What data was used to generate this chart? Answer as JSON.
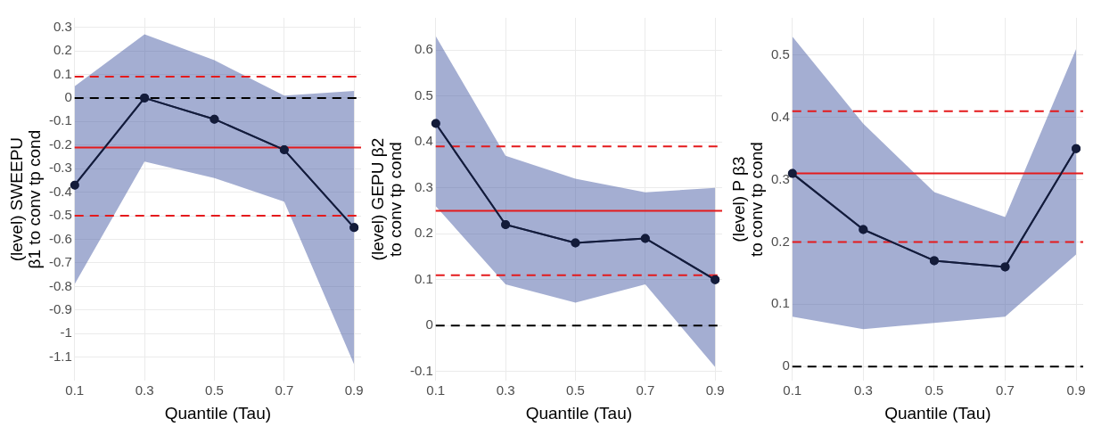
{
  "chart_data": [
    {
      "type": "line",
      "xlabel": "Quantile (Tau)",
      "ylabel": "(level) SWEEPU β1 to conv tp cond",
      "x": [
        0.1,
        0.3,
        0.5,
        0.7,
        0.9
      ],
      "xlim": [
        0.1,
        0.92
      ],
      "xticks": [
        0.1,
        0.3,
        0.5,
        0.7,
        0.9
      ],
      "ylim": [
        -1.2,
        0.34
      ],
      "yticks": [
        0.3,
        0.2,
        0.1,
        0,
        -0.1,
        -0.2,
        -0.3,
        -0.4,
        -0.5,
        -0.6,
        -0.7,
        -0.8,
        -0.9,
        -1,
        -1.1
      ],
      "grid": true,
      "legend": false,
      "marker": "circle",
      "line_style": "solid",
      "series": [
        {
          "color": "#141c3a",
          "values": [
            -0.37,
            0,
            -0.09,
            -0.22,
            -0.55
          ],
          "lower": [
            -0.79,
            -0.27,
            -0.34,
            -0.44,
            -1.13
          ],
          "upper": [
            0.05,
            0.27,
            0.16,
            0.01,
            0.03
          ]
        }
      ],
      "ref_lines": [
        {
          "axis": "y",
          "value": 0.09,
          "color": "#e41a1c",
          "line_style": "dashed"
        },
        {
          "axis": "y",
          "value": -0.21,
          "color": "#e41a1c",
          "line_style": "solid"
        },
        {
          "axis": "y",
          "value": -0.5,
          "color": "#e41a1c",
          "line_style": "dashed"
        },
        {
          "axis": "y",
          "value": 0,
          "color": "#000000",
          "line_style": "dashed"
        }
      ]
    },
    {
      "type": "line",
      "xlabel": "Quantile (Tau)",
      "ylabel": "(level) GEPU β2 to conv tp cond",
      "x": [
        0.1,
        0.3,
        0.5,
        0.7,
        0.9
      ],
      "xlim": [
        0.1,
        0.92
      ],
      "xticks": [
        0.1,
        0.3,
        0.5,
        0.7,
        0.9
      ],
      "ylim": [
        -0.12,
        0.67
      ],
      "yticks": [
        0.6,
        0.5,
        0.4,
        0.3,
        0.2,
        0.1,
        0,
        -0.1
      ],
      "grid": true,
      "legend": false,
      "marker": "circle",
      "line_style": "solid",
      "series": [
        {
          "color": "#141c3a",
          "values": [
            0.44,
            0.22,
            0.18,
            0.19,
            0.1
          ],
          "lower": [
            0.26,
            0.09,
            0.05,
            0.09,
            -0.09
          ],
          "upper": [
            0.63,
            0.37,
            0.32,
            0.29,
            0.3
          ]
        }
      ],
      "ref_lines": [
        {
          "axis": "y",
          "value": 0.39,
          "color": "#e41a1c",
          "line_style": "dashed"
        },
        {
          "axis": "y",
          "value": 0.25,
          "color": "#e41a1c",
          "line_style": "solid"
        },
        {
          "axis": "y",
          "value": 0.11,
          "color": "#e41a1c",
          "line_style": "dashed"
        },
        {
          "axis": "y",
          "value": 0,
          "color": "#000000",
          "line_style": "dashed"
        }
      ]
    },
    {
      "type": "line",
      "xlabel": "Quantile (Tau)",
      "ylabel": "(level) P β3 to conv tp cond",
      "x": [
        0.1,
        0.3,
        0.5,
        0.7,
        0.9
      ],
      "xlim": [
        0.1,
        0.92
      ],
      "xticks": [
        0.1,
        0.3,
        0.5,
        0.7,
        0.9
      ],
      "ylim": [
        -0.023,
        0.56
      ],
      "yticks": [
        0.5,
        0.4,
        0.3,
        0.2,
        0.1,
        0
      ],
      "grid": true,
      "legend": false,
      "marker": "circle",
      "line_style": "solid",
      "series": [
        {
          "color": "#141c3a",
          "values": [
            0.31,
            0.22,
            0.17,
            0.16,
            0.35
          ],
          "lower": [
            0.08,
            0.06,
            0.07,
            0.08,
            0.18
          ],
          "upper": [
            0.53,
            0.39,
            0.28,
            0.24,
            0.51
          ]
        }
      ],
      "ref_lines": [
        {
          "axis": "y",
          "value": 0.41,
          "color": "#e41a1c",
          "line_style": "dashed"
        },
        {
          "axis": "y",
          "value": 0.31,
          "color": "#e41a1c",
          "line_style": "solid"
        },
        {
          "axis": "y",
          "value": 0.2,
          "color": "#e41a1c",
          "line_style": "dashed"
        },
        {
          "axis": "y",
          "value": 0,
          "color": "#000000",
          "line_style": "dashed"
        }
      ]
    }
  ]
}
